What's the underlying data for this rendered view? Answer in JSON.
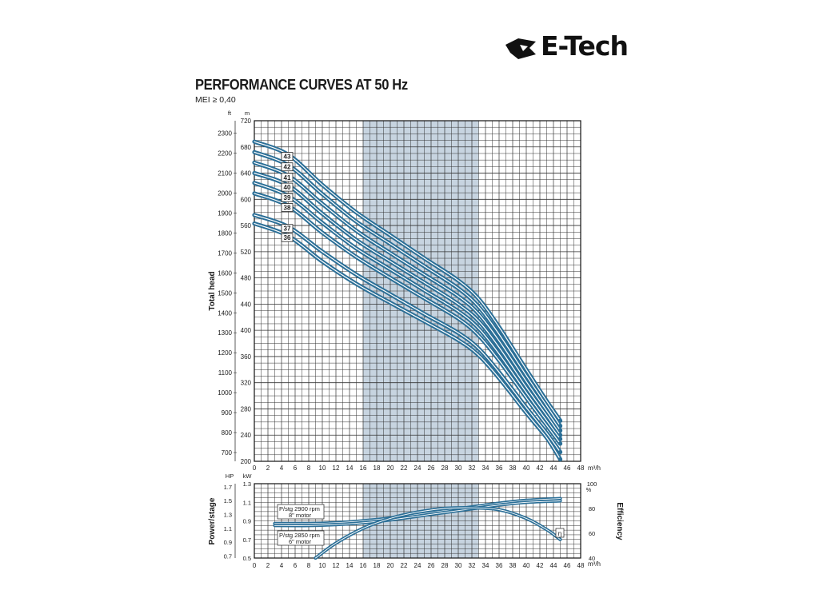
{
  "brand": {
    "name": "E-Tech",
    "logo_text": "E-Tech"
  },
  "header": {
    "title": "PERFORMANCE CURVES AT 50 Hz",
    "subtitle": "MEI ≥ 0,40"
  },
  "colors": {
    "curve": "#2b6f97",
    "grid": "#333333",
    "band": "#c7d4e0",
    "text": "#1b1b1b"
  },
  "chart_data": [
    {
      "type": "line",
      "title": "PERFORMANCE CURVES AT 50 Hz",
      "xlabel": "m³/h",
      "ylabel": "Total head",
      "y_unit_left_outer": "ft",
      "y_unit_left_inner": "m",
      "xlim": [
        0,
        48
      ],
      "ylim": [
        200,
        720
      ],
      "x_ticks": [
        0,
        2,
        4,
        6,
        8,
        10,
        12,
        14,
        16,
        18,
        20,
        22,
        24,
        26,
        28,
        30,
        32,
        34,
        36,
        38,
        40,
        42,
        44,
        46,
        48
      ],
      "y_ticks_m": [
        200,
        240,
        280,
        320,
        360,
        400,
        440,
        480,
        520,
        560,
        600,
        640,
        680,
        720
      ],
      "y_ticks_ft": [
        700,
        800,
        900,
        1000,
        1100,
        1200,
        1300,
        1400,
        1500,
        1600,
        1700,
        1800,
        1900,
        2000,
        2100,
        2200,
        2300
      ],
      "grid": true,
      "shaded_range_x": [
        16,
        33
      ],
      "series": [
        {
          "name": "43",
          "x": [
            0,
            5,
            10,
            15,
            20,
            25,
            30,
            33,
            36,
            40,
            43,
            45
          ],
          "y": [
            688,
            668,
            622,
            580,
            545,
            510,
            476,
            448,
            405,
            340,
            292,
            262
          ]
        },
        {
          "name": "42",
          "x": [
            0,
            5,
            10,
            15,
            20,
            25,
            30,
            33,
            36,
            40,
            43,
            45
          ],
          "y": [
            672,
            652,
            608,
            566,
            532,
            498,
            464,
            436,
            394,
            331,
            285,
            254
          ]
        },
        {
          "name": "41",
          "x": [
            0,
            5,
            10,
            15,
            20,
            25,
            30,
            33,
            36,
            40,
            43,
            45
          ],
          "y": [
            656,
            636,
            593,
            552,
            518,
            485,
            452,
            425,
            384,
            322,
            277,
            247
          ]
        },
        {
          "name": "40",
          "x": [
            0,
            5,
            10,
            15,
            20,
            25,
            30,
            33,
            36,
            40,
            43,
            45
          ],
          "y": [
            640,
            621,
            578,
            538,
            505,
            473,
            440,
            414,
            374,
            313,
            270,
            240
          ]
        },
        {
          "name": "39",
          "x": [
            0,
            5,
            10,
            15,
            20,
            25,
            30,
            33,
            36,
            40,
            43,
            45
          ],
          "y": [
            625,
            605,
            564,
            525,
            493,
            461,
            429,
            403,
            364,
            305,
            262,
            234
          ]
        },
        {
          "name": "38",
          "x": [
            0,
            5,
            10,
            15,
            20,
            25,
            30,
            33,
            36,
            40,
            43,
            45
          ],
          "y": [
            609,
            590,
            549,
            512,
            480,
            449,
            418,
            392,
            354,
            297,
            255,
            227
          ]
        },
        {
          "name": "37",
          "x": [
            0,
            5,
            10,
            15,
            20,
            25,
            30,
            33,
            36,
            40,
            43,
            45
          ],
          "y": [
            576,
            558,
            520,
            485,
            455,
            425,
            396,
            372,
            336,
            282,
            243,
            214
          ]
        },
        {
          "name": "36",
          "x": [
            0,
            5,
            10,
            15,
            20,
            25,
            30,
            33,
            36,
            40,
            43,
            45
          ],
          "y": [
            563,
            544,
            505,
            471,
            442,
            414,
            385,
            362,
            327,
            274,
            236,
            203
          ]
        }
      ]
    },
    {
      "type": "line",
      "ylabel": "Power/stage",
      "y2label": "Efficiency",
      "xlabel": "m³/h",
      "y_unit_left_outer": "HP",
      "y_unit_left_inner": "kW",
      "y2_unit": "%",
      "xlim": [
        0,
        48
      ],
      "ylim": [
        0.5,
        1.3
      ],
      "y_ticks_kw": [
        0.5,
        0.7,
        0.9,
        1.1,
        1.3
      ],
      "y_ticks_hp": [
        0.7,
        0.9,
        1.1,
        1.3,
        1.5,
        1.7
      ],
      "y2lim": [
        40,
        100
      ],
      "y2_ticks": [
        40,
        60,
        80,
        100
      ],
      "x_ticks": [
        0,
        2,
        4,
        6,
        8,
        10,
        12,
        14,
        16,
        18,
        20,
        22,
        24,
        26,
        28,
        30,
        32,
        34,
        36,
        38,
        40,
        42,
        44,
        46,
        48
      ],
      "grid": true,
      "shaded_range_x": [
        16,
        33
      ],
      "annotations": [
        {
          "line1": "P/stg 2900 rpm",
          "line2": "8\" motor"
        },
        {
          "line1": "P/stg 2850 rpm",
          "line2": "6\" motor"
        },
        {
          "line1": "η"
        }
      ],
      "series": [
        {
          "name": "P/stg 2900 rpm 8\" motor",
          "axis": "kW",
          "x": [
            3,
            8,
            12,
            16,
            20,
            24,
            28,
            32,
            36,
            40,
            45
          ],
          "y": [
            0.872,
            0.872,
            0.88,
            0.9,
            0.93,
            0.97,
            1.01,
            1.05,
            1.09,
            1.12,
            1.14
          ]
        },
        {
          "name": "P/stg 2850 rpm 6\" motor",
          "axis": "kW",
          "x": [
            3,
            8,
            12,
            16,
            20,
            24,
            28,
            32,
            36,
            40,
            45
          ],
          "y": [
            0.85,
            0.85,
            0.86,
            0.88,
            0.91,
            0.95,
            0.99,
            1.03,
            1.07,
            1.1,
            1.115
          ]
        },
        {
          "name": "η",
          "axis": "%",
          "x": [
            9,
            12,
            16,
            20,
            24,
            28,
            32,
            36,
            40,
            43,
            45
          ],
          "y": [
            40,
            52,
            64,
            72,
            77,
            80,
            80.5,
            79,
            72,
            63,
            55
          ]
        }
      ]
    }
  ]
}
